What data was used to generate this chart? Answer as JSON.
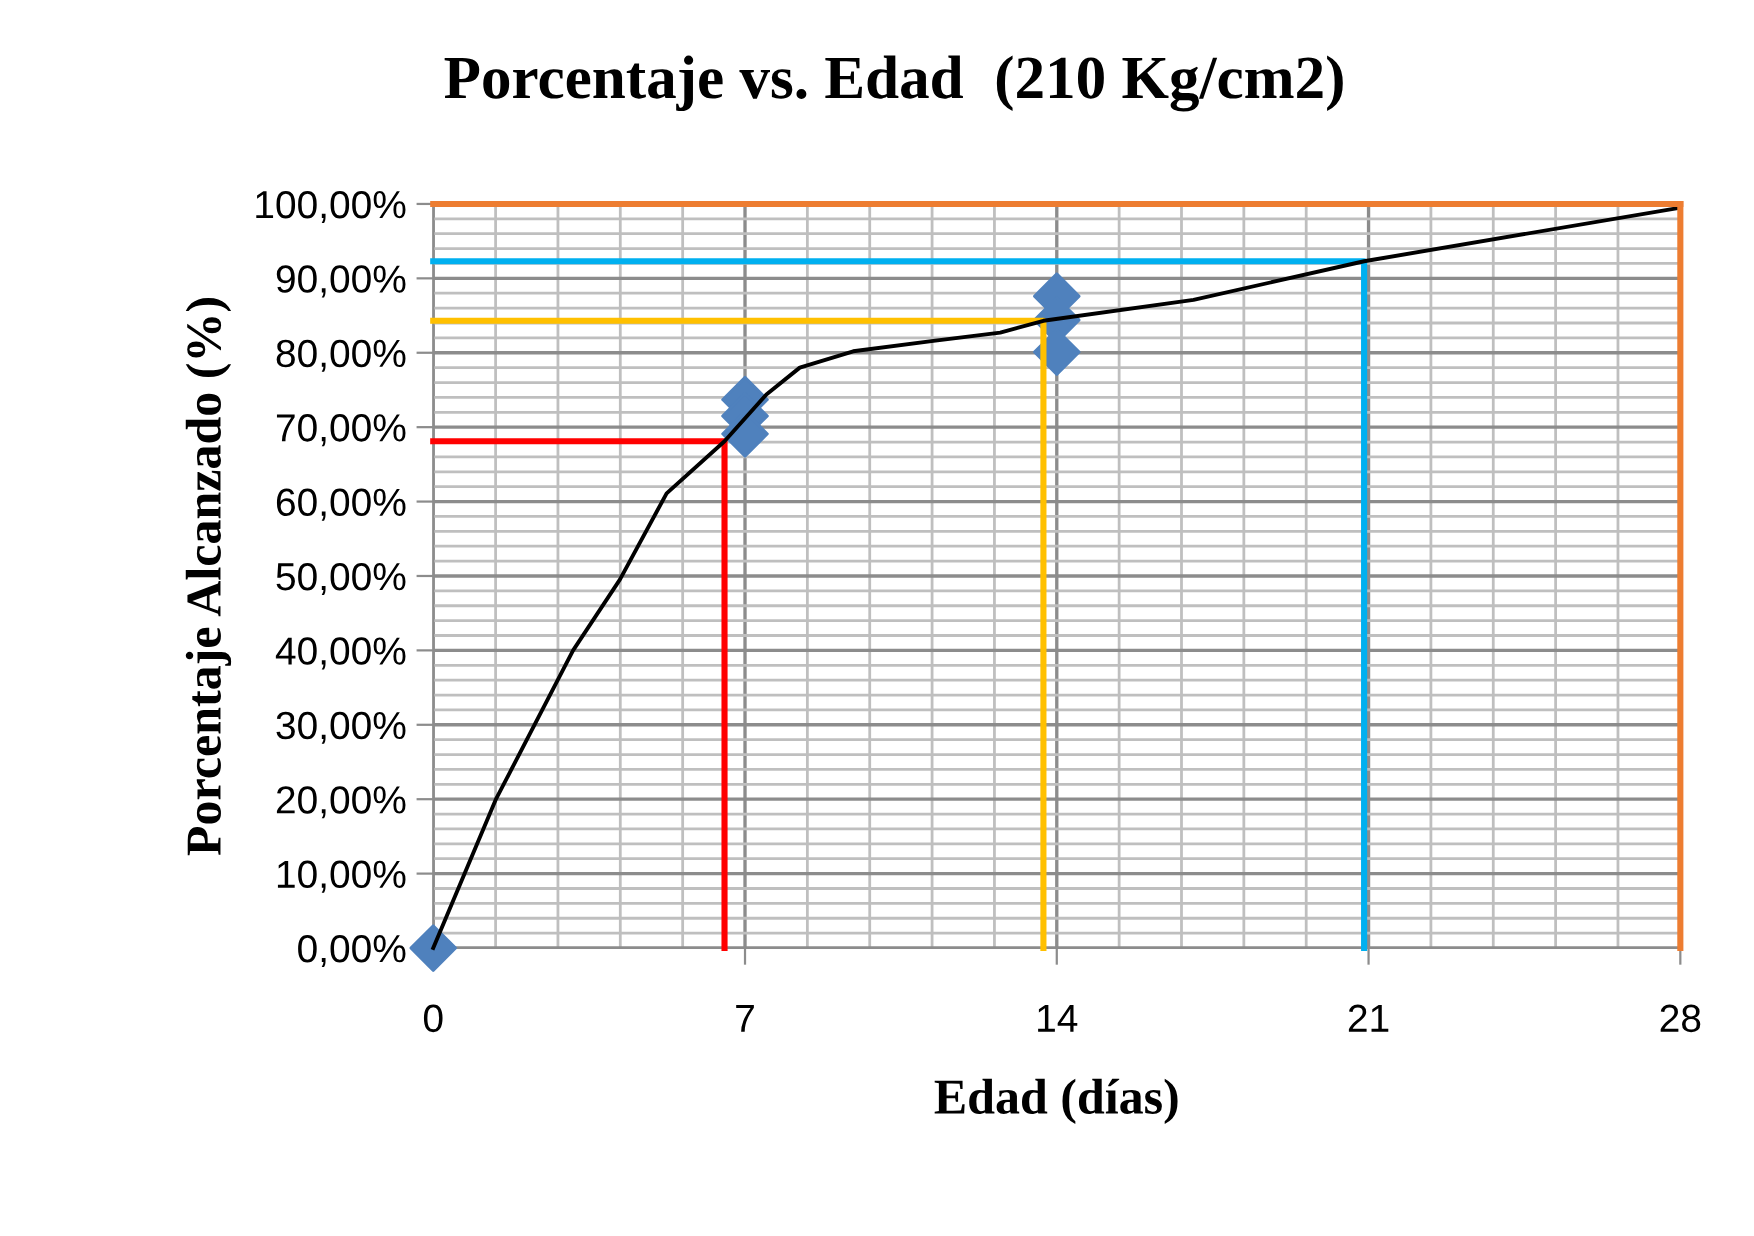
{
  "chart_data": {
    "type": "scatter",
    "title": "Porcentaje vs. Edad  (210 Kg/cm2)",
    "xlabel": "Edad (días)",
    "ylabel": "Porcentaje Alcanzado (%)",
    "xlim": [
      0,
      28
    ],
    "xticks": [
      0,
      7,
      14,
      21,
      28
    ],
    "ylim": [
      0,
      100
    ],
    "yticks": [
      {
        "value": 0,
        "label": "0,00%"
      },
      {
        "value": 10,
        "label": "10,00%"
      },
      {
        "value": 20,
        "label": "20,00%"
      },
      {
        "value": 30,
        "label": "30,00%"
      },
      {
        "value": 40,
        "label": "40,00%"
      },
      {
        "value": 50,
        "label": "50,00%"
      },
      {
        "value": 60,
        "label": "60,00%"
      },
      {
        "value": 70,
        "label": "70,00%"
      },
      {
        "value": 80,
        "label": "80,00%"
      },
      {
        "value": 90,
        "label": "90,00%"
      },
      {
        "value": 100,
        "label": "100,00%"
      }
    ],
    "grid": true,
    "legend": false,
    "ref_lines": [
      {
        "axis": "y",
        "value": 100,
        "color": "#ed7d31"
      },
      {
        "axis": "x",
        "value": 28,
        "color": "#ed7d31"
      }
    ],
    "series": [
      {
        "type": "line",
        "color": "#ff0000",
        "marker": "none",
        "x": [
          0,
          6.54,
          6.54
        ],
        "values": [
          68.1,
          68.1,
          0
        ]
      },
      {
        "type": "line",
        "color": "#ffc000",
        "marker": "none",
        "x": [
          0,
          13.7,
          13.7
        ],
        "values": [
          84.3,
          84.3,
          0
        ]
      },
      {
        "type": "line",
        "color": "#00b0f0",
        "marker": "none",
        "x": [
          0,
          20.9,
          20.9
        ],
        "values": [
          92.3,
          92.3,
          0
        ]
      },
      {
        "type": "line",
        "color": "#000000",
        "marker": "none",
        "x": [
          0,
          1.4,
          3.14,
          4.19,
          5.24,
          6.54,
          7.48,
          8.23,
          9.43,
          11.23,
          12.73,
          13.7,
          17.07,
          20.9,
          28
        ],
        "values": [
          0,
          19.9,
          40,
          49.5,
          61.1,
          68.1,
          74.4,
          78.0,
          80.2,
          81.6,
          82.7,
          84.3,
          87.1,
          92.3,
          99.5
        ]
      },
      {
        "color": "#4f81bd",
        "marker": "diamond",
        "x": [
          0,
          7,
          7,
          7,
          14,
          14,
          14
        ],
        "values": [
          0,
          73.7,
          71.5,
          69.1,
          87.6,
          84.4,
          80.1
        ]
      }
    ]
  }
}
